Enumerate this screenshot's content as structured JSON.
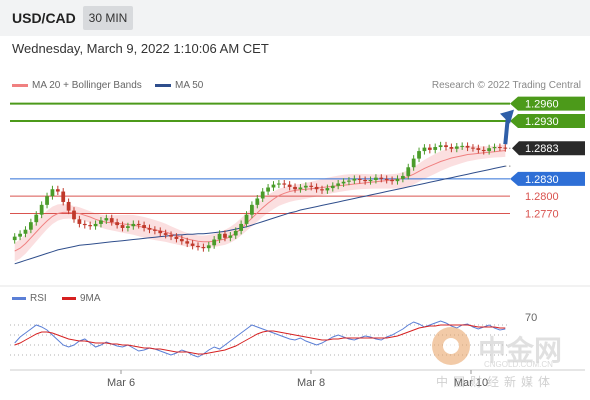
{
  "header": {
    "symbol": "USD/CAD",
    "timeframe": "30 MIN"
  },
  "datetime": "Wednesday, March 9, 2022 1:10:06 AM CET",
  "legend": {
    "ma20": "MA 20 + Bollinger Bands",
    "ma50": "MA 50",
    "rsi": "RSI",
    "ma9": "9MA",
    "research": "Research © 2022 Trading Central"
  },
  "watermark": {
    "text": "中金网",
    "sub": "CNGOLD.COM.CN",
    "cn": "中国财经新媒体"
  },
  "colors": {
    "up": "#4a9c2a",
    "down": "#c0392b",
    "ma20": "#f08080",
    "ma50": "#2f4e8c",
    "resistance": "#4c9a1a",
    "support_blue": "#2e6fd6",
    "support_red": "#d9534f",
    "rsi": "#5b7fd6",
    "rsi_ma": "#d62020",
    "arrow": "#2f5fa8"
  },
  "chart_data": [
    {
      "type": "candlestick",
      "x_ticks": [
        "Mar 6",
        "Mar 8",
        "Mar 10"
      ],
      "ylim": [
        1.2655,
        1.2975
      ],
      "levels": [
        {
          "value": 1.296,
          "label": "1.2960",
          "kind": "resistance"
        },
        {
          "value": 1.293,
          "label": "1.2930",
          "kind": "resistance"
        },
        {
          "value": 1.283,
          "label": "1.2830",
          "kind": "support_blue"
        },
        {
          "value": 1.28,
          "label": "1.2800",
          "kind": "support_red"
        },
        {
          "value": 1.277,
          "label": "1.2770",
          "kind": "support_red"
        }
      ],
      "last_price": "1.2883",
      "close": [
        1.273,
        1.2735,
        1.2742,
        1.2755,
        1.2768,
        1.2785,
        1.28,
        1.2812,
        1.2808,
        1.279,
        1.2775,
        1.276,
        1.2752,
        1.275,
        1.2748,
        1.2752,
        1.2758,
        1.2762,
        1.2755,
        1.275,
        1.2745,
        1.2748,
        1.2752,
        1.275,
        1.2745,
        1.2742,
        1.274,
        1.2736,
        1.2733,
        1.273,
        1.2726,
        1.2722,
        1.2718,
        1.2714,
        1.2712,
        1.271,
        1.2715,
        1.2725,
        1.2735,
        1.2728,
        1.2732,
        1.274,
        1.2752,
        1.2768,
        1.2785,
        1.2796,
        1.2808,
        1.2815,
        1.282,
        1.2822,
        1.282,
        1.2816,
        1.2812,
        1.2815,
        1.2818,
        1.2816,
        1.2812,
        1.281,
        1.2814,
        1.2818,
        1.2822,
        1.2825,
        1.2827,
        1.283,
        1.2828,
        1.2826,
        1.2828,
        1.2832,
        1.283,
        1.2828,
        1.2826,
        1.283,
        1.2835,
        1.285,
        1.2865,
        1.2878,
        1.2884,
        1.288,
        1.2885,
        1.2888,
        1.2885,
        1.2882,
        1.2886,
        1.2887,
        1.2884,
        1.2883,
        1.288,
        1.2878,
        1.2883,
        1.2885,
        1.2884,
        1.2883
      ],
      "ma20": [
        1.2705,
        1.271,
        1.2718,
        1.2728,
        1.2738,
        1.2748,
        1.2757,
        1.2765,
        1.277,
        1.2772,
        1.2772,
        1.2771,
        1.277,
        1.2767,
        1.2764,
        1.276,
        1.2757,
        1.2755,
        1.2754,
        1.2753,
        1.2752,
        1.2751,
        1.275,
        1.2748,
        1.2746,
        1.2744,
        1.2742,
        1.274,
        1.2738,
        1.2735,
        1.2732,
        1.2729,
        1.2726,
        1.2724,
        1.2722,
        1.2721,
        1.2721,
        1.2722,
        1.2724,
        1.2726,
        1.273,
        1.2736,
        1.2744,
        1.2753,
        1.2762,
        1.2771,
        1.278,
        1.2788,
        1.2795,
        1.2801,
        1.2805,
        1.2808,
        1.281,
        1.2811,
        1.2812,
        1.2813,
        1.2814,
        1.2815,
        1.2816,
        1.2817,
        1.2818,
        1.2819,
        1.282,
        1.2821,
        1.2822,
        1.2823,
        1.2824,
        1.2825,
        1.2826,
        1.2827,
        1.2828,
        1.2829,
        1.2831,
        1.2834,
        1.2838,
        1.2843,
        1.2848,
        1.2852,
        1.2856,
        1.286,
        1.2863,
        1.2866,
        1.2868,
        1.287,
        1.2872,
        1.2873,
        1.2874,
        1.2875,
        1.2876,
        1.2877,
        1.2878,
        1.2879
      ],
      "ma50": [
        1.2683,
        1.2686,
        1.2689,
        1.2692,
        1.2695,
        1.2698,
        1.2701,
        1.2704,
        1.2707,
        1.2709,
        1.2711,
        1.2713,
        1.2715,
        1.2716,
        1.2717,
        1.2718,
        1.2719,
        1.272,
        1.2721,
        1.2722,
        1.2723,
        1.2724,
        1.2725,
        1.2726,
        1.2727,
        1.2728,
        1.2729,
        1.273,
        1.2731,
        1.2732,
        1.2733,
        1.2733,
        1.2734,
        1.2734,
        1.2735,
        1.2735,
        1.2736,
        1.2737,
        1.2738,
        1.2739,
        1.2741,
        1.2743,
        1.2745,
        1.2747,
        1.275,
        1.2753,
        1.2756,
        1.2759,
        1.2762,
        1.2765,
        1.2768,
        1.2771,
        1.2773,
        1.2776,
        1.2778,
        1.278,
        1.2782,
        1.2784,
        1.2786,
        1.2788,
        1.279,
        1.2792,
        1.2794,
        1.2796,
        1.2798,
        1.28,
        1.2802,
        1.2804,
        1.2806,
        1.2808,
        1.281,
        1.2812,
        1.2814,
        1.2816,
        1.2818,
        1.282,
        1.2822,
        1.2824,
        1.2826,
        1.2828,
        1.283,
        1.2832,
        1.2834,
        1.2836,
        1.2838,
        1.284,
        1.2842,
        1.2844,
        1.2846,
        1.2848,
        1.285,
        1.2852
      ]
    },
    {
      "type": "line",
      "name": "RSI",
      "level_70": "70",
      "rsi": [
        52,
        58,
        62,
        66,
        70,
        68,
        65,
        60,
        55,
        50,
        48,
        50,
        54,
        56,
        52,
        48,
        50,
        53,
        51,
        49,
        48,
        50,
        47,
        44,
        45,
        47,
        46,
        44,
        42,
        40,
        42,
        45,
        43,
        40,
        38,
        41,
        45,
        48,
        46,
        50,
        54,
        58,
        62,
        66,
        70,
        68,
        66,
        64,
        62,
        60,
        58,
        56,
        55,
        57,
        54,
        52,
        50,
        52,
        55,
        58,
        60,
        58,
        56,
        55,
        57,
        59,
        58,
        56,
        55,
        58,
        60,
        63,
        66,
        70,
        73,
        71,
        68,
        70,
        72,
        74,
        72,
        69,
        67,
        70,
        71,
        68,
        66,
        68,
        70,
        67,
        65,
        66
      ],
      "rsi_ma": [
        50,
        52,
        55,
        58,
        61,
        63,
        63,
        62,
        60,
        58,
        56,
        55,
        54,
        54,
        53,
        52,
        52,
        52,
        51,
        51,
        50,
        50,
        49,
        48,
        47,
        47,
        46,
        46,
        45,
        44,
        43,
        43,
        43,
        42,
        41,
        41,
        42,
        43,
        44,
        45,
        47,
        49,
        52,
        55,
        58,
        61,
        63,
        64,
        64,
        63,
        62,
        61,
        60,
        59,
        58,
        57,
        56,
        55,
        55,
        56,
        56,
        57,
        57,
        57,
        57,
        57,
        57,
        57,
        57,
        57,
        58,
        59,
        61,
        63,
        65,
        67,
        68,
        69,
        69,
        70,
        70,
        70,
        70,
        70,
        70,
        69,
        68,
        68,
        68,
        68,
        67,
        67
      ]
    }
  ]
}
